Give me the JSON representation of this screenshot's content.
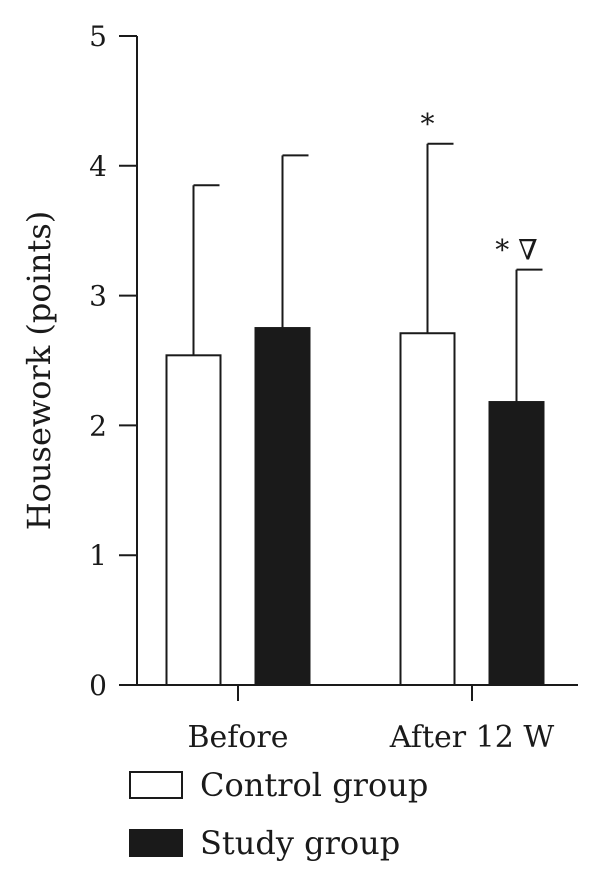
{
  "chart_data": {
    "type": "bar",
    "title": "",
    "xlabel": "",
    "ylabel": "Housework (points)",
    "ylim": [
      0,
      5
    ],
    "yticks": [
      "0",
      "1",
      "2",
      "3",
      "4",
      "5"
    ],
    "categories": [
      "Before",
      "After 12 W"
    ],
    "series": [
      {
        "name": "Control group",
        "color": "#ffffff",
        "values": [
          2.54,
          2.71
        ],
        "error_upper": [
          3.85,
          4.17
        ],
        "annotations": [
          "",
          "*"
        ]
      },
      {
        "name": "Study group",
        "color": "#1a1a1a",
        "values": [
          2.75,
          2.18
        ],
        "error_upper": [
          4.08,
          3.2
        ],
        "annotations": [
          "",
          "* ∇"
        ]
      }
    ],
    "legend": "bottom-left",
    "grid": false
  }
}
